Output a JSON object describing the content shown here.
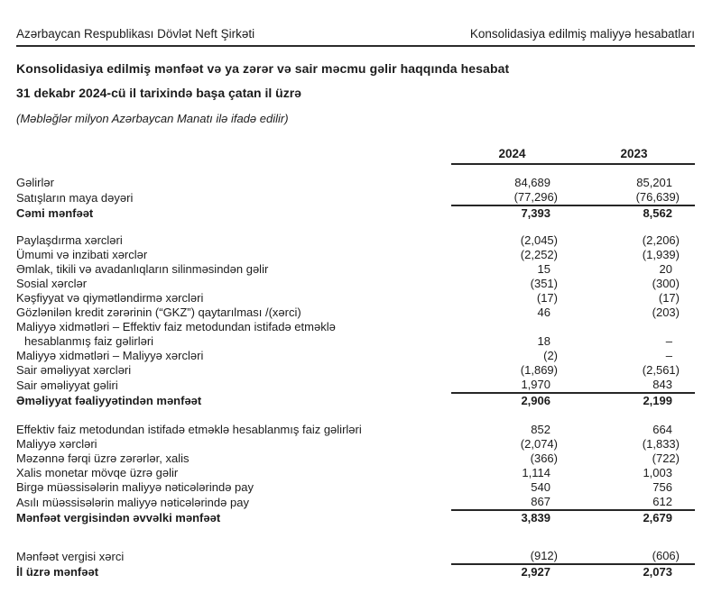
{
  "page_header": {
    "left": "Azərbaycan Respublikası Dövlət Neft Şirkəti",
    "right": "Konsolidasiya edilmiş maliyyə hesabatları"
  },
  "title": "Konsolidasiya edilmiş mənfəət və ya zərər və sair məcmu gəlir haqqında hesabat",
  "subtitle": "31 dekabr 2024-cü il tarixində başa çatan il üzrə",
  "note": "(Məbləğlər milyon Azərbaycan Manatı ilə ifadə edilir)",
  "table": {
    "columns": [
      "2024",
      "2023"
    ],
    "rows": [
      {
        "spacer": 12
      },
      {
        "label": "Gəlirlər",
        "v1": "84,689",
        "v2": "85,201"
      },
      {
        "label": "Satışların maya dəyəri",
        "v1": "(77,296)",
        "v2": "(76,639)",
        "rule_below": true
      },
      {
        "label": "Cəmi mənfəət",
        "v1": "7,393",
        "v2": "8,562",
        "bold": true
      },
      {
        "spacer": 14
      },
      {
        "label": "Paylaşdırma xərcləri",
        "v1": "(2,045)",
        "v2": "(2,206)"
      },
      {
        "label": "Ümumi və inzibati xərclər",
        "v1": "(2,252)",
        "v2": "(1,939)"
      },
      {
        "label": "Əmlak, tikili və avadanlıqların silinməsindən gəlir",
        "v1": "15",
        "v2": "20"
      },
      {
        "label": "Sosial xərclər",
        "v1": "(351)",
        "v2": "(300)"
      },
      {
        "label": "Kəşfiyyat və qiymətləndirmə xərcləri",
        "v1": "(17)",
        "v2": "(17)"
      },
      {
        "label": "Gözlənilən kredit zərərinin (“GKZ”) qaytarılması /(xərci)",
        "v1": "46",
        "v2": "(203)"
      },
      {
        "label": "Maliyyə xidmətləri – Effektiv faiz metodundan istifadə etməklə",
        "label2": "hesablanmış faiz gəlirləri",
        "v1": "18",
        "v2": "–"
      },
      {
        "label": "Maliyyə xidmətləri – Maliyyə xərcləri",
        "v1": "(2)",
        "v2": "–"
      },
      {
        "label": "Sair əməliyyat xərcləri",
        "v1": "(1,869)",
        "v2": "(2,561)"
      },
      {
        "label": "Sair əməliyyat gəliri",
        "v1": "1,970",
        "v2": "843",
        "rule_below": true
      },
      {
        "label": "Əməliyyat fəaliyyətindən mənfəət",
        "v1": "2,906",
        "v2": "2,199",
        "bold": true
      },
      {
        "spacer": 16
      },
      {
        "label": "Effektiv faiz metodundan istifadə etməklə hesablanmış faiz gəlirləri",
        "v1": "852",
        "v2": "664"
      },
      {
        "label": "Maliyyə xərcləri",
        "v1": "(2,074)",
        "v2": "(1,833)"
      },
      {
        "label": "Məzənnə fərqi üzrə zərərlər, xalis",
        "v1": "(366)",
        "v2": "(722)"
      },
      {
        "label": "Xalis monetar mövqe üzrə gəlir",
        "v1": "1,114",
        "v2": "1,003"
      },
      {
        "label": "Birgə müəssisələrin maliyyə nəticələrində pay",
        "v1": "540",
        "v2": "756"
      },
      {
        "label": "Asılı müəssisələrin maliyyə nəticələrində pay",
        "v1": "867",
        "v2": "612",
        "rule_below": true
      },
      {
        "label": "Mənfəət vergisindən əvvəlki mənfəət",
        "v1": "3,839",
        "v2": "2,679",
        "bold": true
      },
      {
        "spacer": 26
      },
      {
        "label": "Mənfəət vergisi xərci",
        "v1": "(912)",
        "v2": "(606)",
        "rule_below": true
      },
      {
        "label": "İl üzrə mənfəət",
        "v1": "2,927",
        "v2": "2,073",
        "bold": true
      }
    ]
  }
}
